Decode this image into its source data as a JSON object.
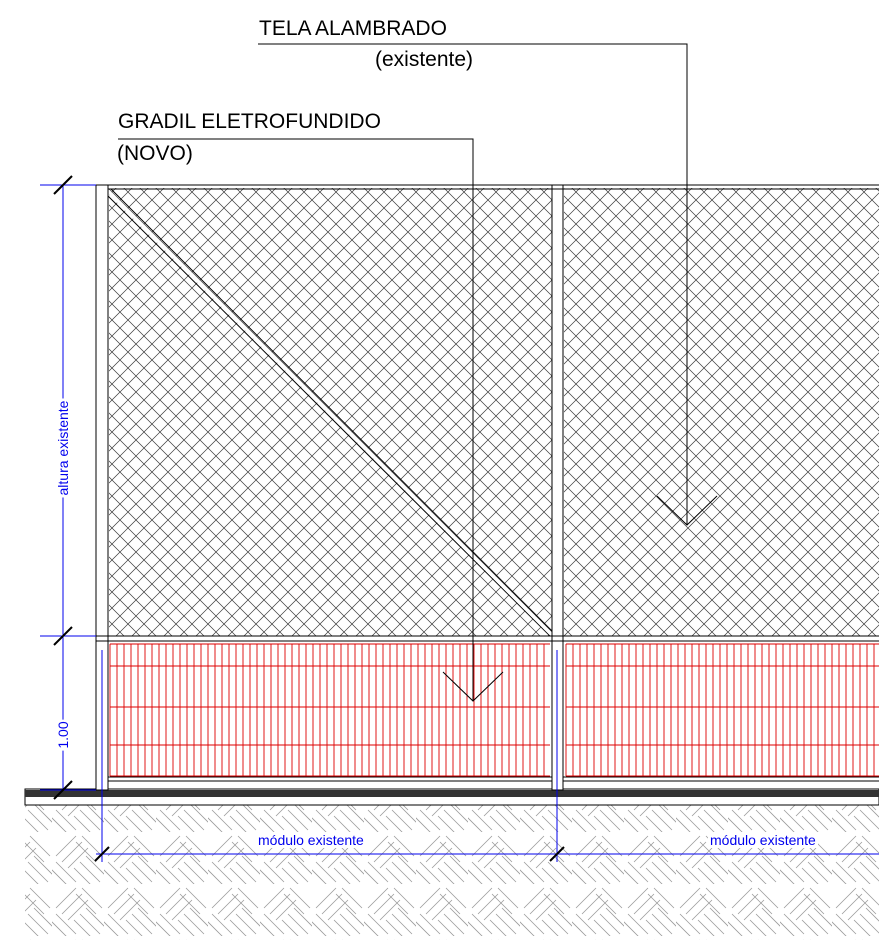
{
  "labels": {
    "tela_line1": "TELA ALAMBRADO",
    "tela_line2": "(existente)",
    "gradil_line1": "GRADIL ELETROFUNDIDO",
    "gradil_line2": "(NOVO)"
  },
  "dimensions": {
    "existing_height": "altura existente",
    "new_rail_height": "1.00",
    "module_left": "módulo existente",
    "module_right": "módulo existente"
  },
  "colors": {
    "line": "#000000",
    "dimension": "#0000ee",
    "rail_mesh": "#dd0000",
    "ground_hatch": "#9a9a9a",
    "ground_slab": "#333333"
  }
}
